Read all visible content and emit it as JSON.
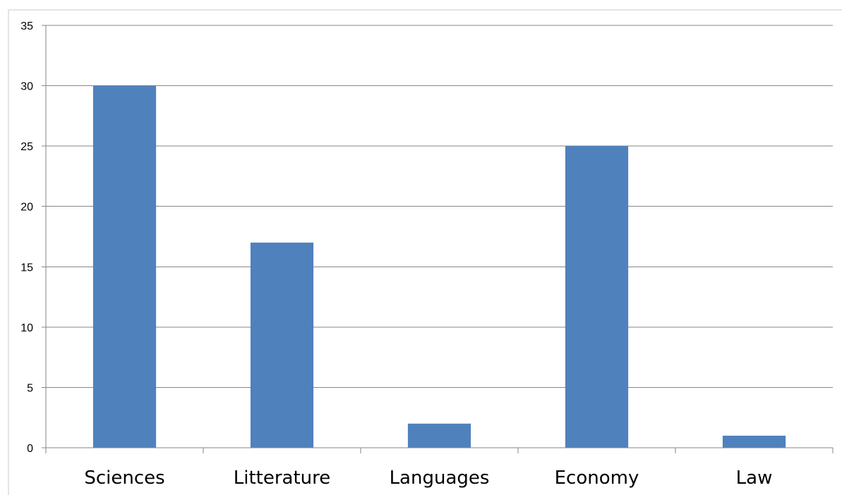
{
  "chart_data": {
    "type": "bar",
    "categories": [
      "Sciences",
      "Litterature",
      "Languages",
      "Economy",
      "Law"
    ],
    "values": [
      30,
      17,
      2,
      25,
      1
    ],
    "title": "",
    "xlabel": "",
    "ylabel": "",
    "ylim": [
      0,
      35
    ],
    "yticks": [
      "0",
      "5",
      "10",
      "15",
      "20",
      "25",
      "30",
      "35"
    ],
    "grid": true,
    "legend": "none",
    "bar_color": "#4F81BD",
    "gridline_color": "#868686",
    "axis_color": "#868686"
  }
}
